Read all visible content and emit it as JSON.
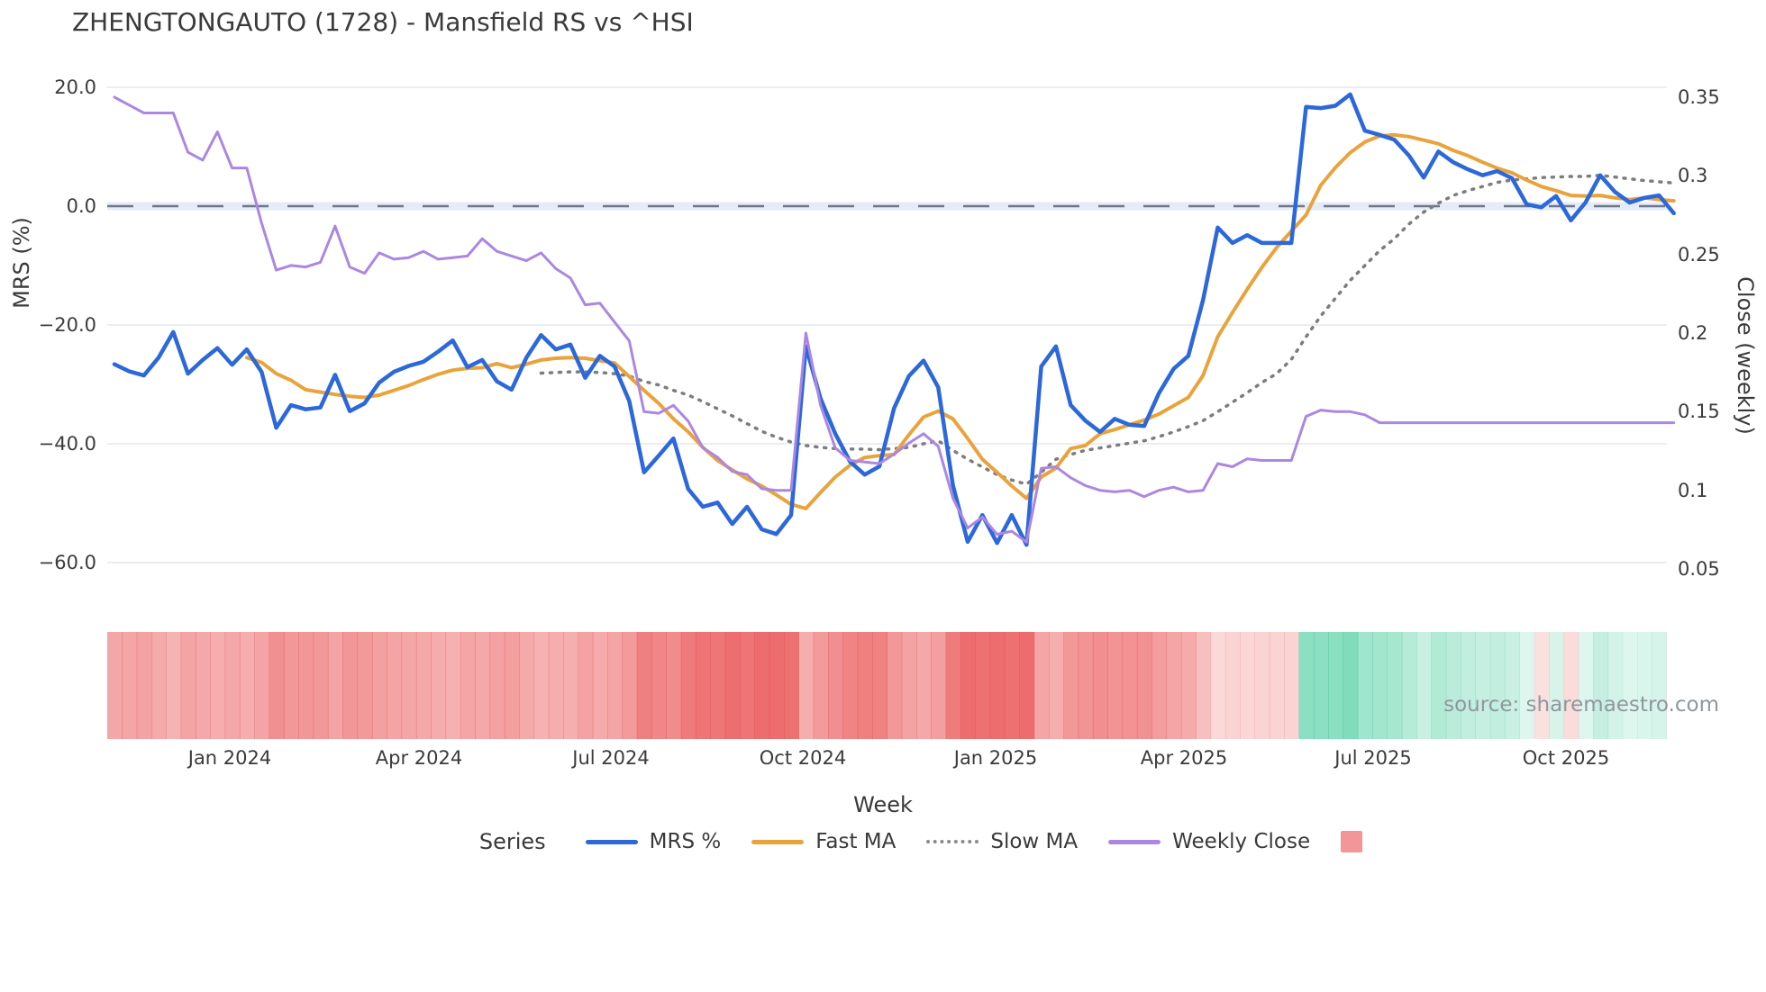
{
  "title": "ZHENGTONGAUTO (1728) - Mansfield RS vs ^HSI",
  "source_note": "source: sharemaestro.com",
  "colors": {
    "mrs_blue": "#2c68d9",
    "fast_ma_orange": "#e9a33c",
    "slow_ma_gray": "#7d7d7d",
    "weekly_close_purple": "#ab87e2",
    "zero_dash": "#6e7789",
    "zero_band": "#e4ecf7",
    "gridline": "#ecedf2",
    "heat_red_rgb": "234,84,85",
    "heat_green_rgb": "52,199,147",
    "legend_heat_swatch": "#f29699",
    "text": "#3a3a3a",
    "source_text": "#8e979d"
  },
  "axes": {
    "left": {
      "title": "MRS (%)",
      "ticks": [
        "20.0",
        "0.0",
        "−20.0",
        "−40.0",
        "−60.0"
      ],
      "tick_values": [
        20,
        0,
        -20,
        -40,
        -60
      ]
    },
    "right": {
      "title": "Close (weekly)",
      "ticks": [
        "0.35",
        "0.3",
        "0.25",
        "0.2",
        "0.15",
        "0.1",
        "0.05"
      ],
      "tick_values": [
        0.35,
        0.3,
        0.25,
        0.2,
        0.15,
        0.1,
        0.05
      ]
    },
    "x": {
      "title": "Week",
      "ticks": [
        "Jan 2024",
        "Apr 2024",
        "Jul 2024",
        "Oct 2024",
        "Jan 2025",
        "Apr 2025",
        "Jul 2025",
        "Oct 2025"
      ]
    }
  },
  "legend": {
    "label": "Series",
    "items": [
      {
        "name": "MRS %",
        "style": "solid",
        "color": "#2c68d9"
      },
      {
        "name": "Fast MA",
        "style": "solid",
        "color": "#e9a33c"
      },
      {
        "name": "Slow MA",
        "style": "dotted",
        "color": "#8a8a8a"
      },
      {
        "name": "Weekly Close",
        "style": "solid",
        "color": "#ab87e2"
      },
      {
        "name": "",
        "style": "square",
        "color": "#f29699"
      }
    ]
  },
  "chart_data": {
    "type": "line",
    "x_unit": "weekly points, Nov 2023 - Nov 2025",
    "x_tick_labels": [
      "Jan 2024",
      "Apr 2024",
      "Jul 2024",
      "Oct 2024",
      "Jan 2025",
      "Apr 2025",
      "Jul 2025",
      "Oct 2025"
    ],
    "ylim_left": [
      -60,
      20
    ],
    "ylim_right": [
      0.05,
      0.35
    ],
    "grid": "horizontal, at left-axis ticks; dashed emphasized line at 0",
    "legend_position": "bottom center",
    "heatmap_strip": "weekly band below plot; red intensity ~ |MRS| when MRS<0, green intensity ~ MRS when MRS>0",
    "series": [
      {
        "name": "MRS %",
        "axis": "left",
        "color": "#2c68d9",
        "style": "solid",
        "width": 4.5,
        "values": [
          -26.6,
          -27.8,
          -28.5,
          -25.5,
          -21.2,
          -28.2,
          -25.9,
          -23.9,
          -26.7,
          -24.1,
          -27.9,
          -37.3,
          -33.5,
          -34.2,
          -33.9,
          -28.4,
          -34.5,
          -33.2,
          -29.7,
          -27.9,
          -26.9,
          -26.2,
          -24.5,
          -22.6,
          -27.1,
          -25.9,
          -29.5,
          -30.9,
          -25.5,
          -21.7,
          -24.1,
          -23.3,
          -28.9,
          -25.2,
          -27.0,
          -32.8,
          -44.8,
          -42.0,
          -39.1,
          -47.6,
          -50.6,
          -49.9,
          -53.5,
          -50.6,
          -54.4,
          -55.2,
          -52.0,
          -23.6,
          -32.4,
          -38.3,
          -43.0,
          -45.2,
          -43.8,
          -34.0,
          -28.6,
          -26.0,
          -30.5,
          -47.0,
          -56.5,
          -52.0,
          -56.7,
          -52.0,
          -57.0,
          -27.0,
          -23.6,
          -33.5,
          -36.1,
          -38.0,
          -35.8,
          -36.8,
          -37.0,
          -31.5,
          -27.4,
          -25.2,
          -15.8,
          -3.6,
          -6.2,
          -4.9,
          -6.2,
          -6.2,
          -6.2,
          16.7,
          16.5,
          16.9,
          18.8,
          12.7,
          12.0,
          11.2,
          8.5,
          4.8,
          9.2,
          7.4,
          6.2,
          5.2,
          5.9,
          4.7,
          0.3,
          -0.2,
          1.7,
          -2.4,
          0.6,
          5.2,
          2.4,
          0.6,
          1.4,
          1.8,
          -1.2
        ]
      },
      {
        "name": "Fast MA",
        "axis": "left",
        "color": "#e9a33c",
        "style": "solid",
        "width": 4,
        "values": [
          null,
          null,
          null,
          null,
          null,
          null,
          null,
          null,
          null,
          -25.5,
          -26.3,
          -28.2,
          -29.3,
          -30.9,
          -31.3,
          -31.7,
          -32.0,
          -32.2,
          -31.8,
          -31.0,
          -30.2,
          -29.2,
          -28.3,
          -27.6,
          -27.3,
          -27.2,
          -26.5,
          -27.2,
          -26.6,
          -25.9,
          -25.6,
          -25.5,
          -25.6,
          -26.0,
          -26.4,
          -28.7,
          -31.0,
          -33.2,
          -35.8,
          -38.0,
          -40.6,
          -42.8,
          -44.4,
          -45.9,
          -47.1,
          -48.6,
          -50.2,
          -50.9,
          -48.2,
          -45.6,
          -43.6,
          -42.3,
          -42.0,
          -41.8,
          -38.5,
          -35.5,
          -34.5,
          -35.8,
          -39.1,
          -42.6,
          -44.8,
          -47.1,
          -49.2,
          -45.6,
          -44.1,
          -40.8,
          -40.3,
          -38.3,
          -37.6,
          -36.8,
          -36.0,
          -35.0,
          -33.6,
          -32.2,
          -28.5,
          -22.0,
          -17.9,
          -14.0,
          -10.3,
          -7.0,
          -4.2,
          -1.5,
          3.5,
          6.5,
          9.0,
          10.8,
          11.8,
          12.0,
          11.7,
          11.1,
          10.5,
          9.4,
          8.5,
          7.4,
          6.4,
          5.6,
          4.4,
          3.3,
          2.6,
          1.8,
          1.7,
          1.8,
          1.4,
          1.1,
          1.4,
          1.1,
          0.9
        ]
      },
      {
        "name": "Slow MA",
        "axis": "left",
        "color": "#7d7d7d",
        "style": "dotted",
        "width": 3.5,
        "values": [
          null,
          null,
          null,
          null,
          null,
          null,
          null,
          null,
          null,
          null,
          null,
          null,
          null,
          null,
          null,
          null,
          null,
          null,
          null,
          null,
          null,
          null,
          null,
          null,
          null,
          null,
          null,
          null,
          null,
          -28.1,
          -28.0,
          -27.9,
          -27.9,
          -28.0,
          -28.2,
          -28.6,
          -29.5,
          -30.1,
          -31.0,
          -31.8,
          -32.9,
          -34.1,
          -35.3,
          -36.6,
          -37.9,
          -38.9,
          -39.7,
          -40.3,
          -40.6,
          -40.8,
          -40.9,
          -40.9,
          -41.0,
          -40.8,
          -40.6,
          -40.0,
          -39.5,
          -41.1,
          -42.6,
          -43.9,
          -45.2,
          -46.1,
          -46.8,
          -44.8,
          -42.6,
          -41.8,
          -41.1,
          -40.7,
          -40.3,
          -39.9,
          -39.5,
          -38.8,
          -38.0,
          -37.1,
          -36.1,
          -34.6,
          -33.0,
          -31.4,
          -29.7,
          -28.2,
          -25.8,
          -22.0,
          -18.5,
          -15.5,
          -12.5,
          -10.0,
          -7.5,
          -5.5,
          -3.0,
          -1.0,
          0.5,
          1.8,
          2.6,
          3.3,
          4.0,
          4.4,
          4.6,
          4.8,
          4.9,
          5.0,
          5.0,
          5.2,
          4.9,
          4.6,
          4.3,
          4.1,
          3.9
        ]
      },
      {
        "name": "Weekly Close",
        "axis": "right",
        "color": "#ab87e2",
        "style": "solid",
        "width": 3,
        "values": [
          0.35,
          0.345,
          0.34,
          0.34,
          0.34,
          0.315,
          0.31,
          0.328,
          0.305,
          0.305,
          0.27,
          0.24,
          0.243,
          0.242,
          0.245,
          0.268,
          0.242,
          0.238,
          0.251,
          0.247,
          0.248,
          0.252,
          0.247,
          0.248,
          0.249,
          0.26,
          0.252,
          0.249,
          0.246,
          0.251,
          0.241,
          0.235,
          0.218,
          0.219,
          0.207,
          0.195,
          0.15,
          0.149,
          0.154,
          0.144,
          0.127,
          0.121,
          0.112,
          0.11,
          0.101,
          0.1,
          0.1,
          0.2,
          0.154,
          0.127,
          0.119,
          0.118,
          0.117,
          0.123,
          0.13,
          0.136,
          0.128,
          0.095,
          0.076,
          0.083,
          0.072,
          0.074,
          0.067,
          0.114,
          0.115,
          0.108,
          0.103,
          0.1,
          0.099,
          0.1,
          0.096,
          0.1,
          0.102,
          0.099,
          0.1,
          0.117,
          0.115,
          0.12,
          0.119,
          0.119,
          0.119,
          0.147,
          0.151,
          0.15,
          0.15,
          0.148,
          0.143,
          0.143,
          0.143,
          0.143,
          0.143,
          0.143,
          0.143,
          0.143,
          0.143,
          0.143,
          0.143,
          0.143,
          0.143,
          0.143,
          0.143,
          0.143,
          0.143,
          0.143,
          0.143,
          0.143,
          0.143
        ]
      }
    ]
  }
}
